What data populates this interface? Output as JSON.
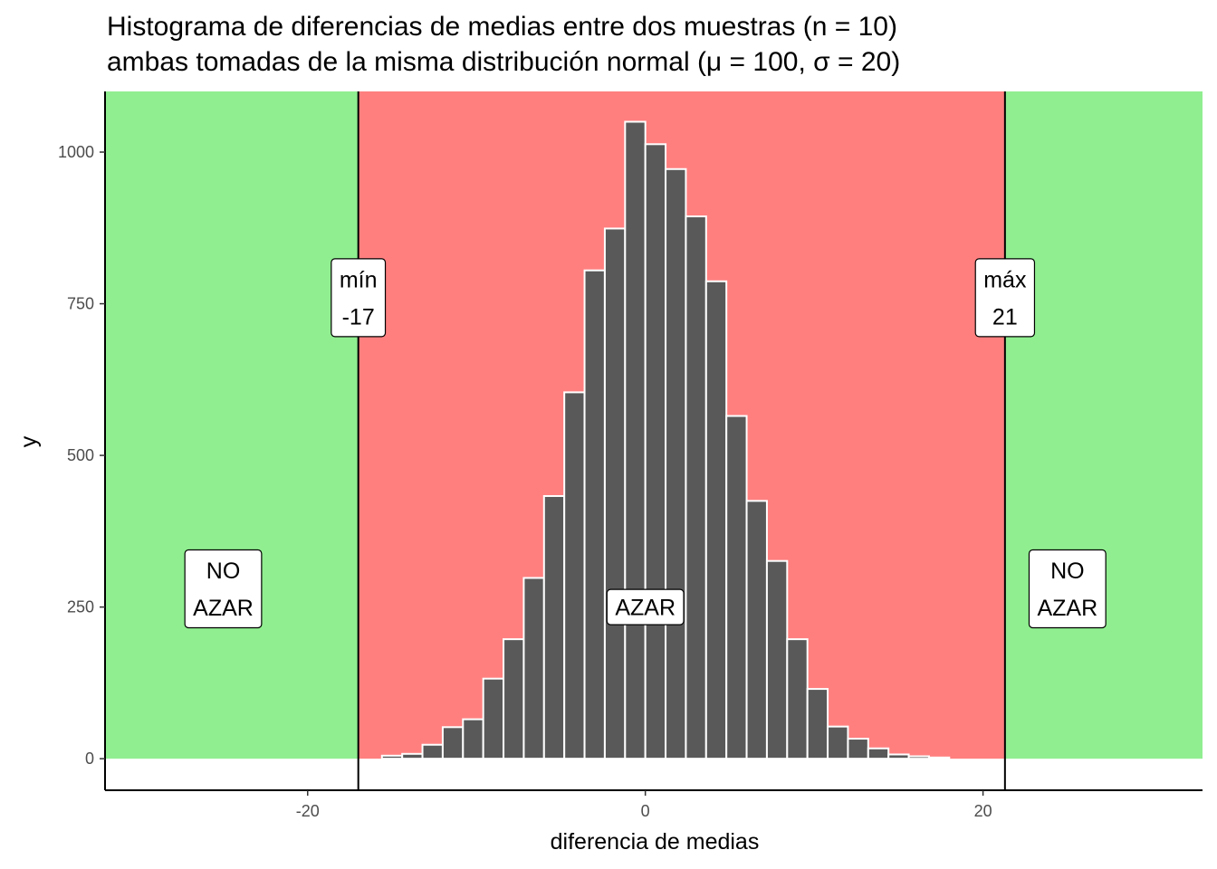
{
  "chart_data": {
    "type": "bar",
    "title": [
      "Histograma de diferencias de medias entre dos muestras (n = 10)",
      "ambas tomadas de la misma distribución normal (μ = 100, σ = 20)"
    ],
    "xlabel": "diferencia de medias",
    "ylabel": "y",
    "xlim": [
      -32,
      33
    ],
    "ylim": [
      -52,
      1100
    ],
    "x_ticks": [
      -20,
      0,
      20
    ],
    "x_tick_labels": [
      "-20",
      "0",
      "20"
    ],
    "y_ticks": [
      0,
      250,
      500,
      750,
      1000
    ],
    "y_tick_labels": [
      "0",
      "250",
      "500",
      "750",
      "1000"
    ],
    "grid": false,
    "bin_width": 1.2,
    "bins": [
      {
        "x": -15,
        "count": 5
      },
      {
        "x": -13.8,
        "count": 8
      },
      {
        "x": -12.6,
        "count": 23
      },
      {
        "x": -11.4,
        "count": 52
      },
      {
        "x": -10.2,
        "count": 65
      },
      {
        "x": -9,
        "count": 132
      },
      {
        "x": -7.8,
        "count": 197
      },
      {
        "x": -6.6,
        "count": 298
      },
      {
        "x": -5.4,
        "count": 433
      },
      {
        "x": -4.2,
        "count": 604
      },
      {
        "x": -3,
        "count": 805
      },
      {
        "x": -1.8,
        "count": 874
      },
      {
        "x": -0.6,
        "count": 1050
      },
      {
        "x": 0.6,
        "count": 1013
      },
      {
        "x": 1.8,
        "count": 972
      },
      {
        "x": 3,
        "count": 894
      },
      {
        "x": 4.2,
        "count": 787
      },
      {
        "x": 5.4,
        "count": 565
      },
      {
        "x": 6.6,
        "count": 425
      },
      {
        "x": 7.8,
        "count": 326
      },
      {
        "x": 9,
        "count": 197
      },
      {
        "x": 10.2,
        "count": 115
      },
      {
        "x": 11.4,
        "count": 53
      },
      {
        "x": 12.6,
        "count": 33
      },
      {
        "x": 13.8,
        "count": 17
      },
      {
        "x": 15,
        "count": 7
      },
      {
        "x": 16.2,
        "count": 4
      },
      {
        "x": 17.4,
        "count": 2
      }
    ],
    "bar_color": "#595959",
    "bar_outline": "#ffffff",
    "regions": [
      {
        "name": "no-azar-left",
        "from": -32,
        "to": -17,
        "color": "#90EE90"
      },
      {
        "name": "azar",
        "from": -17,
        "to": 21.3,
        "color": "#FF7F7F"
      },
      {
        "name": "no-azar-right",
        "from": 21.3,
        "to": 33,
        "color": "#90EE90"
      }
    ],
    "vlines": [
      {
        "name": "min-line",
        "x": -17
      },
      {
        "name": "max-line",
        "x": 21.3
      }
    ],
    "labels": [
      {
        "name": "min-label",
        "x": -17,
        "y": 760,
        "lines": [
          "mín",
          "-17"
        ]
      },
      {
        "name": "max-label",
        "x": 21.3,
        "y": 760,
        "lines": [
          "máx",
          "21"
        ]
      },
      {
        "name": "no-azar-left-label",
        "x": -25,
        "y": 280,
        "lines": [
          "NO",
          "AZAR"
        ]
      },
      {
        "name": "azar-label",
        "x": 0,
        "y": 250,
        "lines": [
          "AZAR"
        ]
      },
      {
        "name": "no-azar-right-label",
        "x": 25,
        "y": 280,
        "lines": [
          "NO",
          "AZAR"
        ]
      }
    ]
  }
}
